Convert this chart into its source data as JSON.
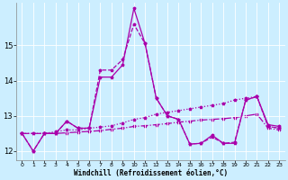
{
  "xlabel": "Windchill (Refroidissement éolien,°C)",
  "background_color": "#cceeff",
  "line_color": "#aa00aa",
  "xlim": [
    -0.5,
    23.5
  ],
  "ylim": [
    11.75,
    16.2
  ],
  "yticks": [
    12,
    13,
    14,
    15
  ],
  "xticks": [
    0,
    1,
    2,
    3,
    4,
    5,
    6,
    7,
    8,
    9,
    10,
    11,
    12,
    13,
    14,
    15,
    16,
    17,
    18,
    19,
    20,
    21,
    22,
    23
  ],
  "line1_x": [
    0,
    1,
    2,
    3,
    4,
    5,
    6,
    7,
    8,
    9,
    10,
    11,
    12,
    13,
    14,
    15,
    16,
    17,
    18,
    19,
    20,
    21,
    22,
    23
  ],
  "line1_y": [
    12.5,
    12.0,
    12.5,
    12.5,
    12.85,
    12.65,
    12.65,
    14.1,
    14.1,
    14.45,
    16.05,
    15.05,
    13.5,
    13.0,
    12.9,
    12.2,
    12.22,
    12.45,
    12.22,
    12.22,
    13.45,
    13.55,
    12.75,
    12.7
  ],
  "line2_x": [
    0,
    1,
    2,
    3,
    4,
    5,
    6,
    7,
    8,
    9,
    10,
    11,
    12,
    13,
    14,
    15,
    16,
    17,
    18,
    19,
    20,
    21,
    22,
    23
  ],
  "line2_y": [
    12.5,
    12.0,
    12.5,
    12.5,
    12.85,
    12.65,
    12.65,
    14.3,
    14.3,
    14.6,
    15.6,
    15.05,
    13.5,
    13.0,
    12.9,
    12.2,
    12.22,
    12.4,
    12.22,
    12.25,
    13.45,
    13.55,
    12.7,
    12.65
  ],
  "line3_x": [
    0,
    1,
    2,
    3,
    4,
    5,
    6,
    7,
    8,
    9,
    10,
    11,
    12,
    13,
    14,
    15,
    16,
    17,
    18,
    19,
    20,
    21,
    22,
    23
  ],
  "line3_y": [
    12.5,
    12.5,
    12.5,
    12.55,
    12.6,
    12.6,
    12.65,
    12.68,
    12.72,
    12.8,
    12.9,
    12.95,
    13.05,
    13.1,
    13.15,
    13.2,
    13.25,
    13.3,
    13.35,
    13.45,
    13.5,
    13.55,
    12.7,
    12.65
  ],
  "line4_x": [
    0,
    1,
    2,
    3,
    4,
    5,
    6,
    7,
    8,
    9,
    10,
    11,
    12,
    13,
    14,
    15,
    16,
    17,
    18,
    19,
    20,
    21,
    22,
    23
  ],
  "line4_y": [
    12.5,
    12.5,
    12.5,
    12.5,
    12.52,
    12.54,
    12.56,
    12.58,
    12.62,
    12.65,
    12.7,
    12.72,
    12.75,
    12.78,
    12.82,
    12.85,
    12.88,
    12.9,
    12.92,
    12.95,
    13.0,
    13.05,
    12.65,
    12.6
  ]
}
